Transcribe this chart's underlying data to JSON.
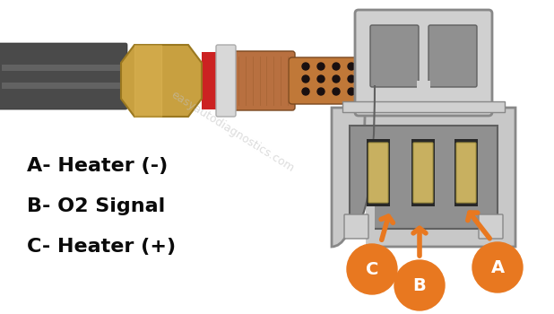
{
  "background_color": "#ffffff",
  "labels": {
    "A": "A- Heater (-)",
    "B": "B- O2 Signal",
    "C": "C- Heater (+)"
  },
  "orange_color": "#e87820",
  "text_color": "#0a0a0a",
  "watermark_text": "easyautodiagnostics.com",
  "sensor": {
    "wire_color": "#4a4a4a",
    "wire_stripe_color": "#888888",
    "nut_color": "#c8a040",
    "nut_edge_color": "#9a7820",
    "body_color": "#b87040",
    "body_edge_color": "#7a4820",
    "tip_color": "#c07838",
    "tip_dots_color": "#1a1010",
    "washer_color": "#d8d8d8",
    "washer_edge_color": "#aaaaaa",
    "red_band_color": "#cc2222",
    "thread_color": "#a06030"
  },
  "connector": {
    "outer_color": "#c8c8c8",
    "outer_edge_color": "#888888",
    "inner_color": "#909090",
    "inner_edge_color": "#606060",
    "tab_color": "#d0d0d0",
    "latch_color": "#b0b0b0",
    "latch_edge": "#888888",
    "terminal_color": "#c8b060",
    "terminal_edge": "#a09040",
    "black_slot": "#282828"
  }
}
